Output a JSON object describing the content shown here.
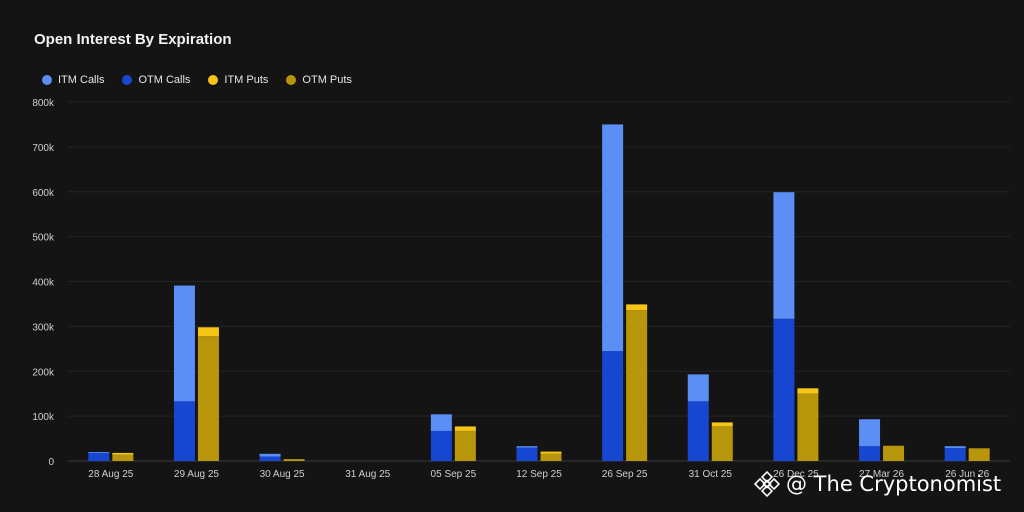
{
  "chart_data": {
    "type": "bar",
    "title": "Open Interest By Expiration",
    "categories": [
      "28 Aug 25",
      "29 Aug 25",
      "30 Aug 25",
      "31 Aug 25",
      "05 Sep 25",
      "12 Sep 25",
      "26 Sep 25",
      "31 Oct 25",
      "26 Dec 25",
      "27 Mar 26",
      "26 Jun 26"
    ],
    "ylim": [
      0,
      800000
    ],
    "yticks": [
      "0",
      "100k",
      "200k",
      "300k",
      "400k",
      "500k",
      "600k",
      "700k",
      "800k"
    ],
    "grid": true,
    "legend_position": "top-left",
    "stacks": [
      {
        "stack": "calls",
        "series": [
          "ITM Calls",
          "OTM Calls"
        ]
      },
      {
        "stack": "puts",
        "series": [
          "ITM Puts",
          "OTM Puts"
        ]
      }
    ],
    "series": [
      {
        "name": "ITM Calls",
        "color": "#5b8ff5",
        "values": [
          2000,
          258000,
          6000,
          0,
          37000,
          3000,
          505000,
          60000,
          282000,
          60000,
          4000
        ]
      },
      {
        "name": "OTM Calls",
        "color": "#1747d1",
        "values": [
          18000,
          133000,
          10000,
          0,
          67000,
          30000,
          245000,
          133000,
          317000,
          33000,
          29000
        ]
      },
      {
        "name": "ITM Puts",
        "color": "#f5c518",
        "values": [
          4000,
          20000,
          1000,
          0,
          10000,
          5000,
          13000,
          8000,
          12000,
          0,
          1000
        ]
      },
      {
        "name": "OTM Puts",
        "color": "#b8960c",
        "values": [
          14000,
          278000,
          3000,
          0,
          67000,
          16000,
          336000,
          78000,
          150000,
          34000,
          27000
        ]
      }
    ]
  },
  "watermark": {
    "text": "@ The Cryptonomist"
  }
}
